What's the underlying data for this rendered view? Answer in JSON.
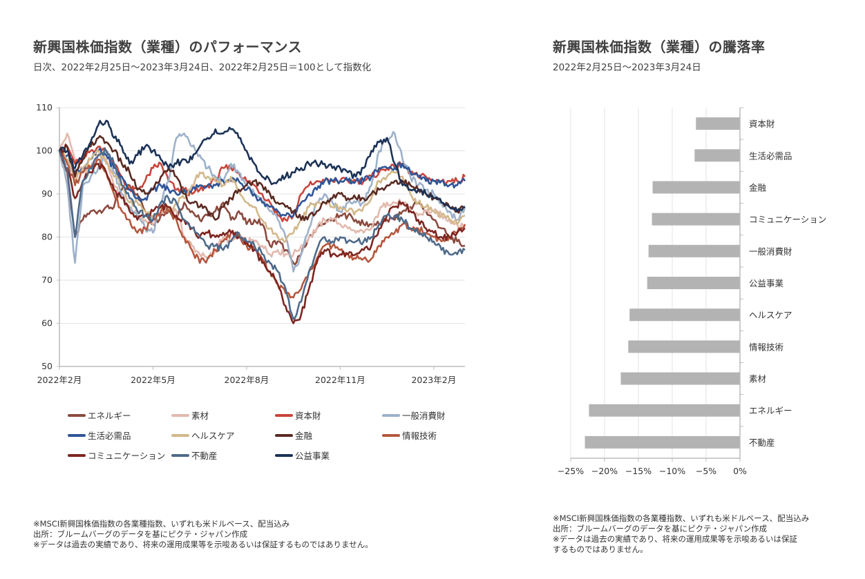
{
  "left_panel": {
    "title": "新興国株価指数（業種）のパフォーマンス",
    "subtitle": "日次、2022年2月25日～2023年3月24日、2022年2月25日＝100として指数化",
    "notes": [
      "※MSCI新興国株価指数の各業種指数、いずれも米ドルベース、配当込み",
      "出所：ブルームバーグのデータを基にピクテ・ジャパン作成",
      "※データは過去の実績であり、将来の運用成果等を示唆あるいは保証するものではありません。"
    ]
  },
  "right_panel": {
    "title": "新興国株価指数（業種）の騰落率",
    "subtitle": "2022年2月25日～2023年3月24日",
    "notes": [
      "※MSCI新興国株価指数の各業種指数、いずれも米ドルベース、配当込み",
      "出所：ブルームバーグのデータを基にピクテ・ジャパン作成",
      "※データは過去の実績であり、将来の運用成果等を示唆あるいは保証",
      "するものではありません。"
    ]
  },
  "chart_data": [
    {
      "type": "line",
      "title": "新興国株価指数（業種）のパフォーマンス",
      "xlabel": "",
      "ylabel": "",
      "ylim": [
        50,
        110
      ],
      "yticks": [
        50,
        60,
        70,
        80,
        90,
        100,
        110
      ],
      "xticks": [
        "2022年2月",
        "2022年5月",
        "2022年8月",
        "2022年11月",
        "2023年2月"
      ],
      "xtick_positions_month_index": [
        0,
        3,
        6,
        9,
        12
      ],
      "x_range_months": [
        0,
        13.0
      ],
      "grid": "horizontal",
      "legend": "bottom",
      "x_months": [
        0,
        0.25,
        0.5,
        0.75,
        1,
        1.25,
        1.5,
        1.75,
        2,
        2.25,
        2.5,
        2.75,
        3,
        3.25,
        3.5,
        3.75,
        4,
        4.25,
        4.5,
        4.75,
        5,
        5.25,
        5.5,
        5.75,
        6,
        6.25,
        6.5,
        6.75,
        7,
        7.25,
        7.5,
        7.75,
        8,
        8.25,
        8.5,
        8.75,
        9,
        9.25,
        9.5,
        9.75,
        10,
        10.25,
        10.5,
        10.75,
        11,
        11.25,
        11.5,
        11.75,
        12,
        12.25,
        12.5,
        12.75,
        13.0
      ],
      "series": [
        {
          "name": "エネルギー",
          "color": "#8B4A3F",
          "values": [
            100,
            95,
            80,
            84,
            86,
            86,
            87,
            87,
            91,
            92,
            90,
            86,
            83,
            85,
            86,
            85,
            88,
            86,
            84,
            85,
            86,
            88,
            84,
            86,
            83,
            84,
            83,
            78,
            79,
            77,
            74,
            76,
            80,
            82,
            83,
            84,
            85,
            85,
            84,
            83,
            83,
            83,
            84,
            84,
            86,
            87,
            88,
            86,
            84,
            82,
            80,
            79,
            78
          ]
        },
        {
          "name": "素材",
          "color": "#E2B9AE",
          "values": [
            100,
            104,
            98,
            95,
            96,
            99,
            98,
            92,
            89,
            87,
            85,
            84,
            83,
            86,
            87,
            86,
            80,
            78,
            76,
            75,
            77,
            80,
            79,
            80,
            79,
            79,
            78,
            76,
            77,
            76,
            76,
            78,
            80,
            82,
            84,
            84,
            83,
            82,
            81,
            81,
            82,
            86,
            88,
            88,
            88,
            86,
            85,
            86,
            86,
            85,
            84,
            83,
            82
          ]
        },
        {
          "name": "資本財",
          "color": "#C8453B",
          "values": [
            100,
            101,
            97,
            98,
            100,
            101,
            100,
            97,
            94,
            91,
            91,
            93,
            96,
            97,
            93,
            91,
            91,
            90,
            91,
            92,
            93,
            96,
            96,
            95,
            93,
            92,
            90,
            88,
            85,
            84,
            85,
            90,
            92,
            93,
            93,
            93,
            93,
            93,
            93,
            93,
            94,
            95,
            96,
            96,
            97,
            95,
            94,
            94,
            93,
            93,
            93,
            93,
            94
          ]
        },
        {
          "name": "一般消費財",
          "color": "#9DB1C9",
          "values": [
            100,
            92,
            74,
            92,
            94,
            96,
            100,
            95,
            90,
            87,
            85,
            82,
            81,
            88,
            93,
            103,
            104,
            101,
            99,
            96,
            94,
            93,
            97,
            95,
            92,
            90,
            88,
            86,
            84,
            80,
            72,
            76,
            82,
            88,
            90,
            88,
            86,
            88,
            88,
            88,
            92,
            100,
            103,
            104,
            98,
            94,
            92,
            91,
            90,
            88,
            86,
            84,
            87
          ]
        },
        {
          "name": "生活必需品",
          "color": "#2E5597",
          "values": [
            100,
            99,
            95,
            96,
            98,
            100,
            99,
            96,
            94,
            91,
            89,
            89,
            91,
            92,
            91,
            90,
            91,
            91,
            92,
            92,
            92,
            93,
            93,
            93,
            91,
            90,
            88,
            87,
            86,
            85,
            85,
            88,
            90,
            91,
            93,
            93,
            93,
            93,
            93,
            93,
            94,
            96,
            96,
            96,
            97,
            95,
            94,
            93,
            93,
            93,
            92,
            92,
            93
          ]
        },
        {
          "name": "ヘルスケア",
          "color": "#D3B88A",
          "values": [
            100,
            98,
            93,
            96,
            98,
            100,
            97,
            94,
            92,
            88,
            88,
            86,
            85,
            87,
            86,
            88,
            89,
            92,
            95,
            94,
            93,
            92,
            94,
            91,
            88,
            87,
            84,
            82,
            80,
            79,
            81,
            84,
            87,
            88,
            88,
            87,
            87,
            86,
            86,
            87,
            89,
            93,
            94,
            95,
            94,
            90,
            88,
            87,
            86,
            85,
            84,
            83,
            85
          ]
        },
        {
          "name": "金融",
          "color": "#5A2A22",
          "values": [
            100,
            101,
            94,
            98,
            101,
            103,
            102,
            100,
            97,
            95,
            91,
            90,
            91,
            94,
            96,
            94,
            90,
            88,
            87,
            86,
            84,
            87,
            89,
            91,
            92,
            93,
            92,
            90,
            88,
            87,
            86,
            84,
            85,
            86,
            88,
            89,
            90,
            89,
            89,
            89,
            90,
            91,
            92,
            93,
            93,
            92,
            91,
            90,
            89,
            88,
            87,
            86,
            87
          ]
        },
        {
          "name": "情報技術",
          "color": "#B4573D",
          "values": [
            100,
            97,
            92,
            95,
            96,
            98,
            95,
            90,
            86,
            84,
            81,
            82,
            84,
            86,
            86,
            84,
            80,
            77,
            74,
            75,
            77,
            79,
            81,
            80,
            78,
            77,
            75,
            72,
            69,
            67,
            66,
            68,
            72,
            75,
            78,
            78,
            77,
            76,
            75,
            75,
            75,
            78,
            80,
            81,
            83,
            82,
            82,
            81,
            80,
            79,
            80,
            81,
            83
          ]
        },
        {
          "name": "コミュニケーション",
          "color": "#7E2520",
          "values": [
            100,
            96,
            89,
            93,
            95,
            97,
            95,
            91,
            89,
            86,
            84,
            85,
            86,
            87,
            87,
            85,
            84,
            82,
            80,
            81,
            80,
            81,
            81,
            80,
            79,
            77,
            74,
            72,
            69,
            64,
            60,
            62,
            68,
            74,
            77,
            76,
            76,
            76,
            76,
            77,
            78,
            82,
            85,
            87,
            88,
            86,
            84,
            82,
            81,
            80,
            80,
            81,
            82
          ]
        },
        {
          "name": "不動産",
          "color": "#4E6A8A",
          "values": [
            100,
            96,
            80,
            93,
            96,
            99,
            100,
            97,
            92,
            89,
            86,
            85,
            84,
            88,
            89,
            88,
            84,
            82,
            80,
            78,
            78,
            77,
            79,
            81,
            79,
            78,
            76,
            74,
            72,
            68,
            61,
            65,
            72,
            77,
            80,
            79,
            80,
            79,
            79,
            79,
            80,
            83,
            85,
            85,
            84,
            82,
            81,
            80,
            79,
            77,
            76,
            76,
            77
          ]
        },
        {
          "name": "公益事業",
          "color": "#1C3256",
          "values": [
            100,
            100,
            96,
            99,
            102,
            106,
            107,
            103,
            101,
            97,
            99,
            101,
            100,
            98,
            96,
            97,
            98,
            98,
            101,
            103,
            105,
            104,
            105,
            103,
            100,
            97,
            94,
            93,
            93,
            94,
            95,
            96,
            97,
            97,
            97,
            96,
            96,
            95,
            94,
            96,
            100,
            102,
            103,
            97,
            92,
            91,
            91,
            90,
            89,
            88,
            87,
            86,
            87
          ]
        }
      ]
    },
    {
      "type": "bar",
      "orientation": "horizontal",
      "title": "新興国株価指数（業種）の騰落率",
      "categories": [
        "資本財",
        "生活必需品",
        "金融",
        "コミュニケーション",
        "一般消費財",
        "公益事業",
        "ヘルスケア",
        "情報技術",
        "素材",
        "エネルギー",
        "不動産"
      ],
      "values": [
        -6.5,
        -6.7,
        -12.9,
        -13.0,
        -13.5,
        -13.7,
        -16.3,
        -16.5,
        -17.6,
        -22.3,
        -22.9
      ],
      "unit": "%",
      "xlim": [
        -25,
        0
      ],
      "xticks": [
        -25,
        -20,
        -15,
        -10,
        -5,
        0
      ],
      "xtick_labels": [
        "−25%",
        "−20%",
        "−15%",
        "−10%",
        "−5%",
        "0%"
      ],
      "bar_color": "#B3B3B3",
      "grid": "vertical",
      "legend": "none"
    }
  ]
}
